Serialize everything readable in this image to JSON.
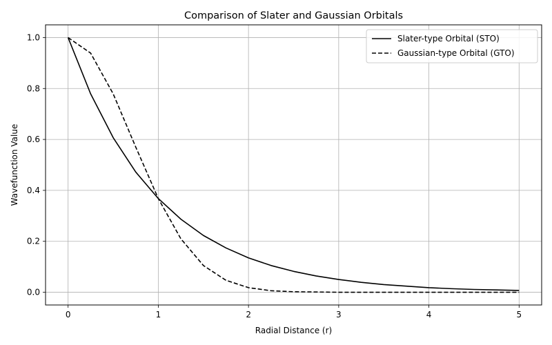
{
  "chart_data": {
    "type": "line",
    "title": "Comparison of Slater and Gaussian Orbitals",
    "xlabel": "Radial Distance (r)",
    "ylabel": "Wavefunction Value",
    "xlim": [
      -0.25,
      5.25
    ],
    "ylim": [
      -0.05,
      1.05
    ],
    "x_ticks": [
      0,
      1,
      2,
      3,
      4,
      5
    ],
    "x_tick_labels": [
      "0",
      "1",
      "2",
      "3",
      "4",
      "5"
    ],
    "y_ticks": [
      0.0,
      0.2,
      0.4,
      0.6,
      0.8,
      1.0
    ],
    "y_tick_labels": [
      "0.0",
      "0.2",
      "0.4",
      "0.6",
      "0.8",
      "1.0"
    ],
    "grid": true,
    "legend_position": "top-right",
    "x": [
      0,
      0.25,
      0.5,
      0.75,
      1.0,
      1.25,
      1.5,
      1.75,
      2.0,
      2.25,
      2.5,
      2.75,
      3.0,
      3.25,
      3.5,
      3.75,
      4.0,
      4.25,
      4.5,
      4.75,
      5.0
    ],
    "series": [
      {
        "name": "Slater-type Orbital (STO)",
        "style": "solid",
        "color": "#000000",
        "values": [
          1.0,
          0.779,
          0.607,
          0.472,
          0.368,
          0.287,
          0.223,
          0.174,
          0.135,
          0.105,
          0.082,
          0.064,
          0.05,
          0.039,
          0.03,
          0.024,
          0.018,
          0.014,
          0.011,
          0.009,
          0.007
        ]
      },
      {
        "name": "Gaussian-type Orbital (GTO)",
        "style": "dashed",
        "color": "#000000",
        "values": [
          1.0,
          0.939,
          0.779,
          0.57,
          0.368,
          0.21,
          0.105,
          0.047,
          0.018,
          0.006,
          0.002,
          0.001,
          0.0,
          0.0,
          0.0,
          0.0,
          0.0,
          0.0,
          0.0,
          0.0,
          0.0
        ]
      }
    ]
  }
}
